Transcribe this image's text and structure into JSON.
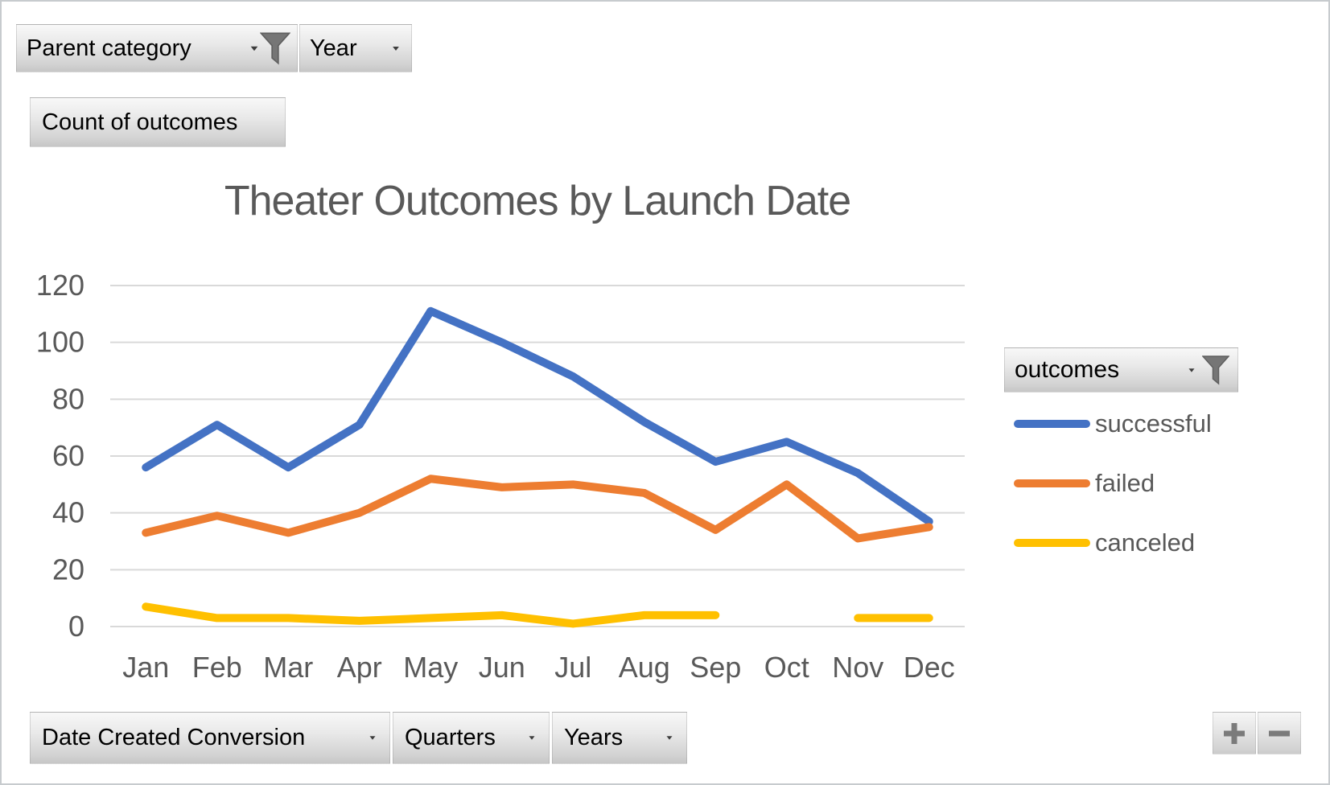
{
  "app": {
    "type": "excel-pivotchart"
  },
  "filters": {
    "parent_category": {
      "label": "Parent category",
      "filtered": true
    },
    "year": {
      "label": "Year",
      "filtered": false
    },
    "values_button": {
      "label": "Count of outcomes"
    },
    "legend_button": {
      "label": "outcomes",
      "filtered": true
    },
    "axis_buttons": [
      {
        "label": "Date Created Conversion"
      },
      {
        "label": "Quarters"
      },
      {
        "label": "Years"
      }
    ]
  },
  "drill_buttons": {
    "expand": "plus",
    "collapse": "minus"
  },
  "chart_data": {
    "type": "line",
    "title": "Theater Outcomes by Launch Date",
    "categories": [
      "Jan",
      "Feb",
      "Mar",
      "Apr",
      "May",
      "Jun",
      "Jul",
      "Aug",
      "Sep",
      "Oct",
      "Nov",
      "Dec"
    ],
    "series": [
      {
        "name": "successful",
        "color": "#4472C4",
        "values": [
          56,
          71,
          56,
          71,
          111,
          100,
          88,
          72,
          58,
          65,
          54,
          37
        ]
      },
      {
        "name": "failed",
        "color": "#ED7D31",
        "values": [
          33,
          39,
          33,
          40,
          52,
          49,
          50,
          47,
          34,
          50,
          31,
          35
        ]
      },
      {
        "name": "canceled",
        "color": "#FFC000",
        "values": [
          7,
          3,
          3,
          2,
          3,
          4,
          1,
          4,
          4,
          null,
          3,
          3
        ]
      }
    ],
    "ylim": [
      0,
      120
    ],
    "ytick_step": 20,
    "grid": true,
    "legend_position": "right",
    "colors": {
      "axis_text": "#595959",
      "grid_line": "#D9D9D9",
      "title_text": "#595959"
    }
  }
}
